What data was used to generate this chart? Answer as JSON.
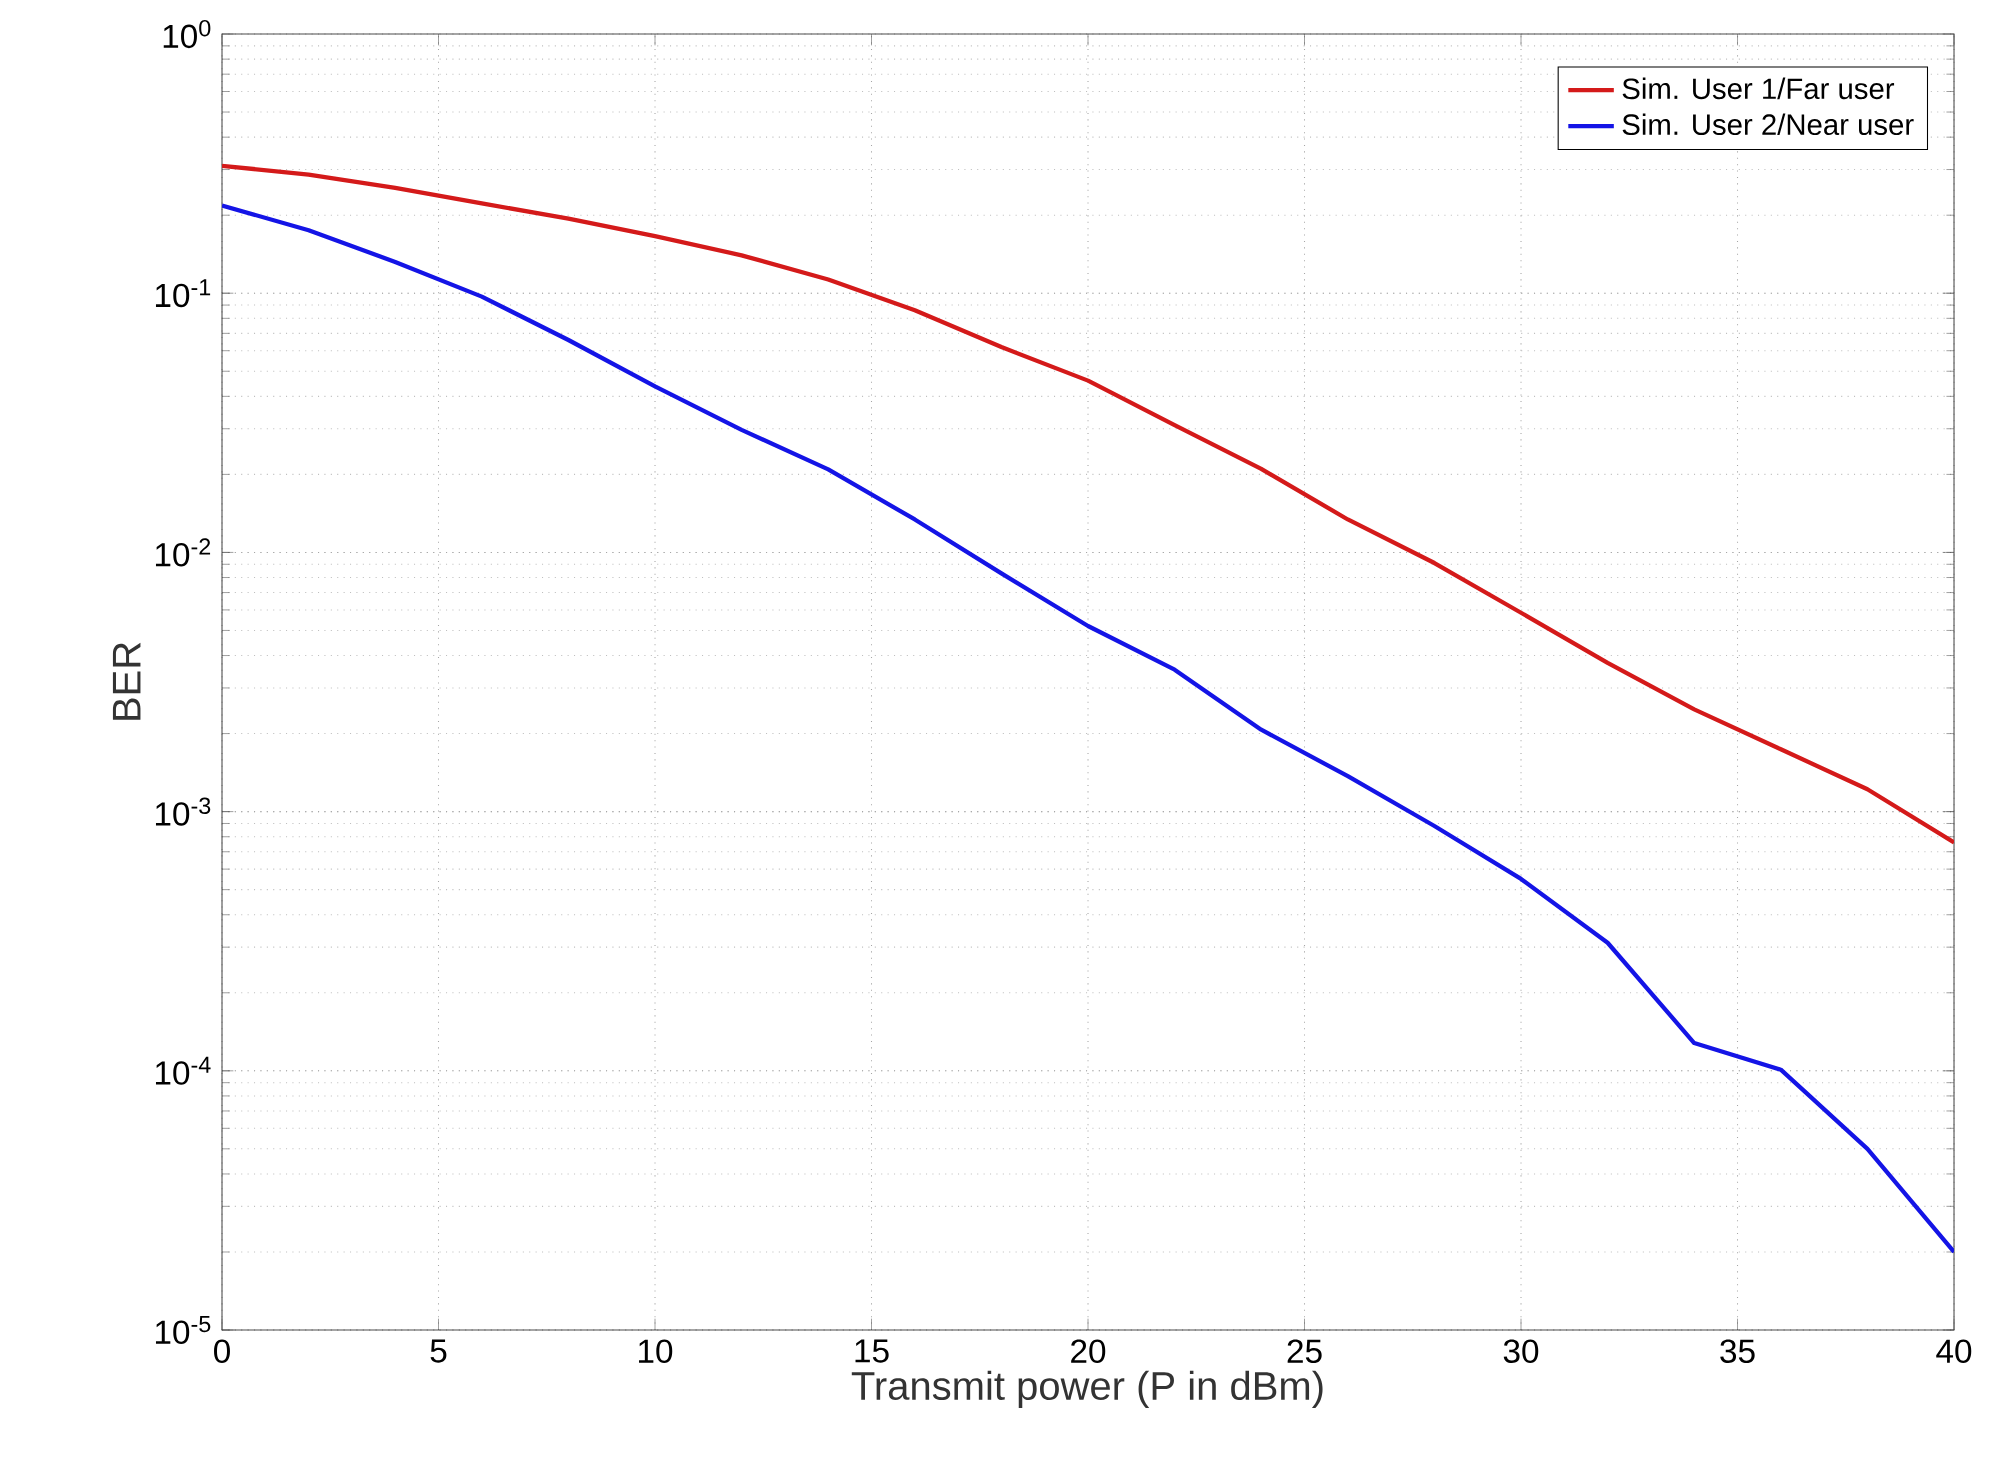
{
  "chart_data": {
    "type": "line",
    "xlabel": "Transmit power (P in dBm)",
    "ylabel": "BER",
    "log": "y",
    "grid": true,
    "legend": "top right",
    "line_style": "solid",
    "marker": "none",
    "x": [
      0,
      2,
      4,
      6,
      8,
      10,
      12,
      14,
      16,
      18,
      20,
      22,
      24,
      26,
      28,
      30,
      32,
      34,
      36,
      38,
      40
    ],
    "xlim": [
      0,
      40
    ],
    "xticks": [
      0,
      5,
      10,
      15,
      20,
      25,
      30,
      35,
      40
    ],
    "ylim": [
      1e-05,
      1
    ],
    "yticks": [
      {
        "value": 1e-05,
        "label": "10$^{-5}$"
      },
      {
        "value": 0.0001,
        "label": "10$^{-4}$"
      },
      {
        "value": 0.001,
        "label": "10$^{-3}$"
      },
      {
        "value": 0.01,
        "label": "10$^{-2}$"
      },
      {
        "value": 0.1,
        "label": "10$^{-1}$"
      },
      {
        "value": 1,
        "label": "10$^{0}$"
      }
    ],
    "series": [
      {
        "name": "Sim. User 1/Far user",
        "color": "#d41a1a",
        "values": [
          0.31,
          0.287,
          0.255,
          0.222,
          0.194,
          0.166,
          0.14,
          0.113,
          0.086,
          0.062,
          0.046,
          0.031,
          0.021,
          0.0134,
          0.0091,
          0.00585,
          0.00375,
          0.00248,
          0.00174,
          0.00122,
          0.00076
        ]
      },
      {
        "name": "Sim. User 2/Near user",
        "color": "#1414e6",
        "values": [
          0.218,
          0.175,
          0.132,
          0.097,
          0.066,
          0.0437,
          0.0297,
          0.0209,
          0.0134,
          0.0083,
          0.0052,
          0.00353,
          0.00207,
          0.00137,
          0.00088,
          0.00055,
          0.000312,
          0.000128,
          0.000101,
          5e-05,
          2e-05
        ]
      }
    ]
  }
}
